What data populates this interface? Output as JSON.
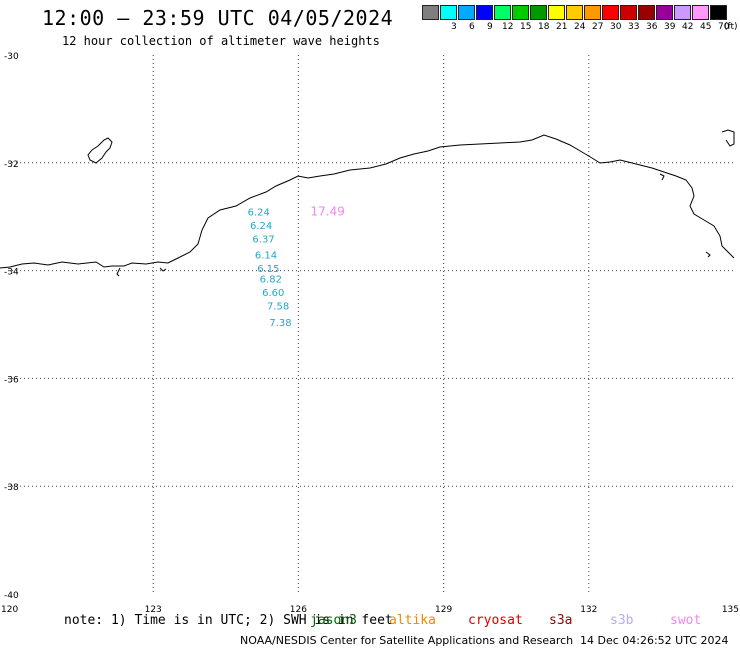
{
  "header": {
    "title": "12:00 — 23:59 UTC 04/05/2024",
    "subtitle": "12 hour collection of altimeter wave heights"
  },
  "legend": {
    "unit_label": "(ft)",
    "items": [
      {
        "label": "",
        "color": "#7f7f7f"
      },
      {
        "label": "3",
        "color": "#00ffff"
      },
      {
        "label": "6",
        "color": "#00aaff"
      },
      {
        "label": "9",
        "color": "#0000ff"
      },
      {
        "label": "12",
        "color": "#00ff66"
      },
      {
        "label": "15",
        "color": "#00cc00"
      },
      {
        "label": "18",
        "color": "#009900"
      },
      {
        "label": "21",
        "color": "#ffff00"
      },
      {
        "label": "24",
        "color": "#ffcc00"
      },
      {
        "label": "27",
        "color": "#ff9900"
      },
      {
        "label": "30",
        "color": "#ff0000"
      },
      {
        "label": "33",
        "color": "#cc0000"
      },
      {
        "label": "36",
        "color": "#990000"
      },
      {
        "label": "39",
        "color": "#990099"
      },
      {
        "label": "42",
        "color": "#cc99ff"
      },
      {
        "label": "45",
        "color": "#ff99ff"
      },
      {
        "label": "70",
        "color": "#000000"
      }
    ]
  },
  "map": {
    "lon_range": [
      120,
      135
    ],
    "lat_range": [
      -40,
      -30
    ],
    "lon_ticks": [
      {
        "value": 120,
        "label": "120"
      },
      {
        "value": 123,
        "label": "123"
      },
      {
        "value": 126,
        "label": "126"
      },
      {
        "value": 129,
        "label": "129"
      },
      {
        "value": 132,
        "label": "132"
      },
      {
        "value": 135,
        "label": "135"
      }
    ],
    "lat_ticks": [
      {
        "value": -30,
        "label": "-30"
      },
      {
        "value": -32,
        "label": "-32"
      },
      {
        "value": -34,
        "label": "-34"
      },
      {
        "value": -36,
        "label": "-36"
      },
      {
        "value": -38,
        "label": "-38"
      },
      {
        "value": -40,
        "label": "-40"
      }
    ],
    "gridlines": true,
    "coast_color": "#000000",
    "grid_color": "#444444"
  },
  "observations": {
    "teal_color": "#22a8cc",
    "pink_color": "#ee88ee",
    "pink_label": {
      "text": "17.49",
      "lon": 126.25,
      "lat": -32.9
    },
    "teal_points": [
      {
        "text": "6.24",
        "lon": 124.95,
        "lat": -32.9
      },
      {
        "text": "6.24",
        "lon": 125.0,
        "lat": -33.15
      },
      {
        "text": "6.37",
        "lon": 125.05,
        "lat": -33.4
      },
      {
        "text": "6.14",
        "lon": 125.1,
        "lat": -33.7
      },
      {
        "text": "6.15",
        "lon": 125.15,
        "lat": -33.95
      },
      {
        "text": "6.82",
        "lon": 125.2,
        "lat": -34.15
      },
      {
        "text": "6.60",
        "lon": 125.25,
        "lat": -34.4
      },
      {
        "text": "7.58",
        "lon": 125.35,
        "lat": -34.65
      },
      {
        "text": "7.38",
        "lon": 125.4,
        "lat": -34.95
      }
    ]
  },
  "footer": {
    "note": "note: 1) Time is in UTC; 2) SWH is in feet",
    "satellites": [
      {
        "name": "jason3",
        "color": "#006600"
      },
      {
        "name": "altika",
        "color": "#ee8800"
      },
      {
        "name": "cryosat",
        "color": "#dd0000"
      },
      {
        "name": "s3a",
        "color": "#990000"
      },
      {
        "name": "s3b",
        "color": "#bbaaee"
      },
      {
        "name": "swot",
        "color": "#ee88ee"
      }
    ],
    "credit": "NOAA/NESDIS Center for Satellite Applications and Research",
    "timestamp": "14 Dec 04:26:52 UTC 2024"
  }
}
